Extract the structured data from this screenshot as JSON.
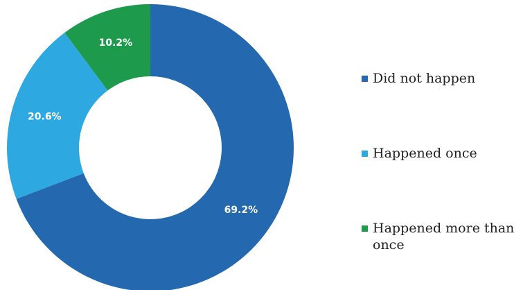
{
  "chart_data": {
    "type": "pie",
    "variant": "donut",
    "categories": [
      "Did not happen",
      "Happened once",
      "Happened more than once"
    ],
    "values": [
      69.2,
      20.6,
      10.2
    ],
    "labels": [
      "69.2%",
      "20.6%",
      "10.2%"
    ],
    "colors": [
      "#2469b0",
      "#2ea8e0",
      "#1d9a4b"
    ],
    "legend_position": "right",
    "title": "",
    "xlabel": "",
    "ylabel": ""
  }
}
